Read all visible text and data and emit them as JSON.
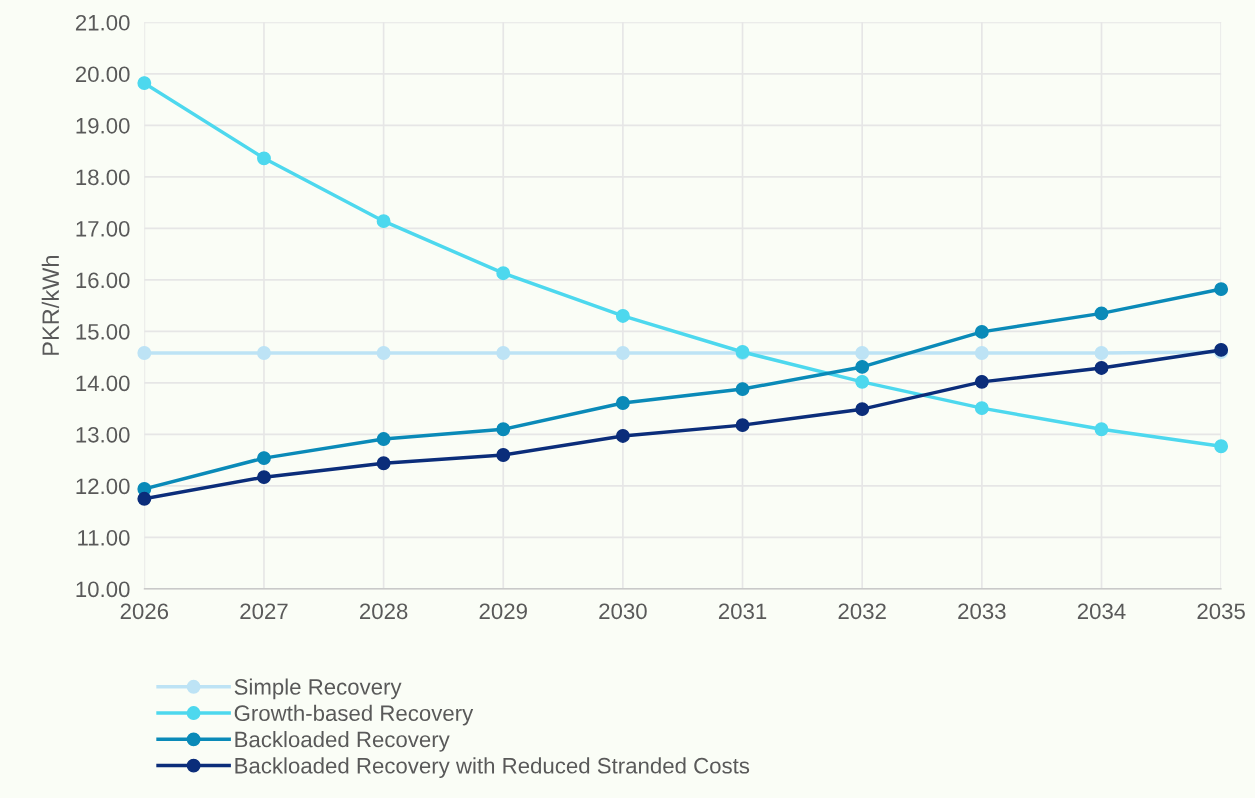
{
  "chart_data": {
    "type": "line",
    "ylabel": "PKR/kWh",
    "x": [
      2026,
      2027,
      2028,
      2029,
      2030,
      2031,
      2032,
      2033,
      2034,
      2035
    ],
    "series": [
      {
        "name": "Simple Recovery",
        "color": "#bde3f5",
        "values": [
          14.58,
          14.58,
          14.58,
          14.58,
          14.58,
          14.58,
          14.58,
          14.58,
          14.58,
          14.6
        ]
      },
      {
        "name": "Growth-based Recovery",
        "color": "#4dd8ee",
        "values": [
          19.82,
          18.36,
          17.14,
          16.13,
          15.3,
          14.6,
          14.02,
          13.51,
          13.1,
          12.77
        ]
      },
      {
        "name": "Backloaded Recovery",
        "color": "#0a8ab8",
        "values": [
          11.94,
          12.54,
          12.91,
          13.1,
          13.61,
          13.88,
          14.31,
          14.99,
          15.35,
          15.82
        ]
      },
      {
        "name": "Backloaded Recovery with Reduced Stranded Costs",
        "color": "#0b2d7a",
        "values": [
          11.75,
          12.17,
          12.44,
          12.6,
          12.97,
          13.18,
          13.49,
          14.02,
          14.29,
          14.64
        ]
      }
    ],
    "xlim": [
      2026,
      2035
    ],
    "xticks": [
      2026,
      2027,
      2028,
      2029,
      2030,
      2031,
      2032,
      2033,
      2034,
      2035
    ],
    "ylim": [
      10,
      21
    ],
    "yticks": [
      {
        "value": 10,
        "label": "10.00"
      },
      {
        "value": 11,
        "label": "11.00"
      },
      {
        "value": 12,
        "label": "12.00"
      },
      {
        "value": 13,
        "label": "13.00"
      },
      {
        "value": 14,
        "label": "14.00"
      },
      {
        "value": 15,
        "label": "15.00"
      },
      {
        "value": 16,
        "label": "16.00"
      },
      {
        "value": 17,
        "label": "17.00"
      },
      {
        "value": 18,
        "label": "18.00"
      },
      {
        "value": 19,
        "label": "19.00"
      },
      {
        "value": 20,
        "label": "20.00"
      },
      {
        "value": 21,
        "label": "21.00"
      }
    ],
    "grid": true,
    "legend": "bottom",
    "marker": "circle",
    "line_style": "solid"
  }
}
